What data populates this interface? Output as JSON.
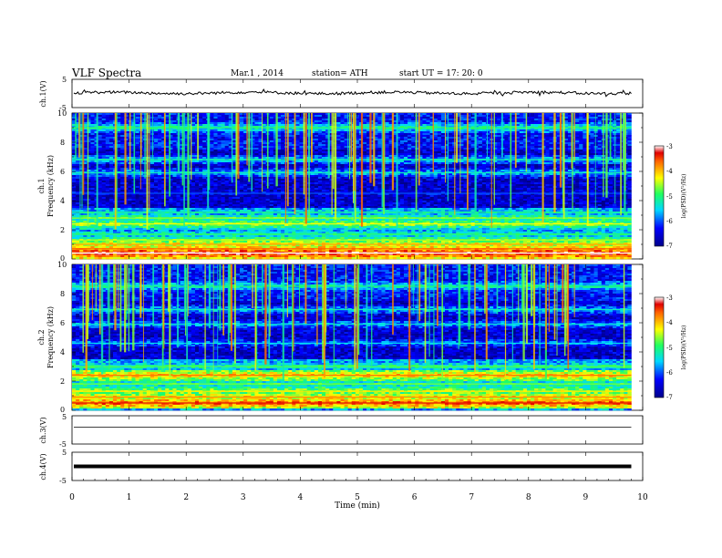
{
  "header": {
    "title": "VLF  Spectra",
    "date": "Mar.1  , 2014",
    "station": "station= ATH",
    "start_ut": "start  UT  =   17: 20: 0"
  },
  "chart_data": [
    {
      "type": "line",
      "panel": "ch1-waveform",
      "ylabel": "ch.1(V)",
      "ylim": [
        -5,
        5
      ],
      "yticks": [
        "5",
        "-5"
      ],
      "xlim": [
        0,
        10
      ],
      "trace_level_V": 0.2
    },
    {
      "type": "heatmap",
      "panel": "ch1-spectrogram",
      "ylabel": "ch.1",
      "ylabel2": "Frequency  (kHz)",
      "ylim": [
        0,
        10
      ],
      "yticks": [
        "0",
        "2",
        "4",
        "6",
        "8",
        "10"
      ],
      "xlim": [
        0,
        9.8
      ],
      "colorbar": {
        "label": "log(PSD)(V²/Hz)",
        "range": [
          -7,
          -3
        ],
        "ticks": [
          "-3",
          "-4",
          "-5",
          "-6",
          "-7"
        ]
      },
      "bands_kHz": [
        {
          "f": 0.4,
          "level": -3.3
        },
        {
          "f": 0.7,
          "level": -3.9
        },
        {
          "f": 1.0,
          "level": -4.2
        },
        {
          "f": 1.3,
          "level": -4.8
        },
        {
          "f": 1.7,
          "level": -5.2
        },
        {
          "f": 2.4,
          "level": -4.6
        },
        {
          "f": 2.8,
          "level": -4.9
        },
        {
          "f": 3.2,
          "level": -5.4
        },
        {
          "f": 4.5,
          "level": -6.3
        },
        {
          "f": 5.9,
          "level": -5.6
        },
        {
          "f": 6.8,
          "level": -5.5
        },
        {
          "f": 9.0,
          "level": -5.2
        }
      ]
    },
    {
      "type": "heatmap",
      "panel": "ch2-spectrogram",
      "ylabel": "ch.2",
      "ylabel2": "Frequency  (kHz)",
      "ylim": [
        0,
        10
      ],
      "yticks": [
        "0",
        "2",
        "4",
        "6",
        "8",
        "10"
      ],
      "xlim": [
        0,
        9.8
      ],
      "colorbar": {
        "label": "log(PSD)(V²/Hz)",
        "range": [
          -7,
          -3
        ],
        "ticks": [
          "-3",
          "-4",
          "-5",
          "-6",
          "-7"
        ]
      },
      "bands_kHz": [
        {
          "f": 0.5,
          "level": -3.6
        },
        {
          "f": 0.9,
          "level": -4.1
        },
        {
          "f": 1.3,
          "level": -4.5
        },
        {
          "f": 1.8,
          "level": -5.0
        },
        {
          "f": 2.4,
          "level": -4.0
        },
        {
          "f": 3.0,
          "level": -5.1
        },
        {
          "f": 4.6,
          "level": -5.8
        },
        {
          "f": 5.9,
          "level": -5.7
        },
        {
          "f": 6.9,
          "level": -5.6
        },
        {
          "f": 8.5,
          "level": -5.3
        }
      ]
    },
    {
      "type": "line",
      "panel": "ch3-waveform",
      "ylabel": "ch.3(V)",
      "ylim": [
        -5,
        5
      ],
      "yticks": [
        "5",
        "-5"
      ],
      "xlim": [
        0,
        10
      ],
      "trace_level_V": 1.0
    },
    {
      "type": "line",
      "panel": "ch4-waveform",
      "ylabel": "ch.4(V)",
      "ylim": [
        -5,
        5
      ],
      "yticks": [
        "5",
        "-5"
      ],
      "xlim": [
        0,
        10
      ],
      "trace_level_V": 0.0
    }
  ],
  "x_axis": {
    "label": "Time  (min)",
    "ticks": [
      "0",
      "1",
      "2",
      "3",
      "4",
      "5",
      "6",
      "7",
      "8",
      "9",
      "10"
    ]
  }
}
